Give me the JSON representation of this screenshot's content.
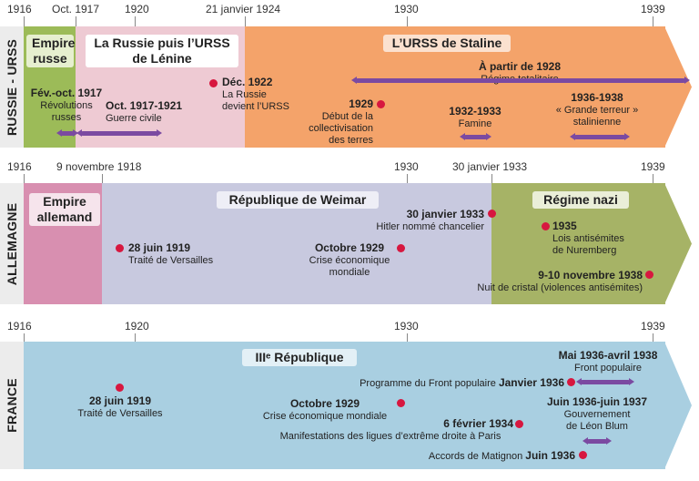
{
  "colors": {
    "sidebar": "#ececec",
    "event_dot": "#d7173f",
    "duration_bar": "#7b4aa1",
    "empire_russe": "#9cbb58",
    "russie_lenine": "#eecad3",
    "urss_staline": "#f4a36a",
    "empire_allemand": "#d88fb0",
    "weimar": "#c8c9df",
    "regime_nazi": "#a6b366",
    "france": "#a9cfe1"
  },
  "rows": [
    {
      "label": "RUSSIE - URSS",
      "ticks": [
        "1916",
        "Oct. 1917",
        "1920",
        "21 janvier 1924",
        "1930",
        "1939"
      ],
      "periods": [
        {
          "title": "Empire russe"
        },
        {
          "title": "La Russie puis l’URSS de Lénine"
        },
        {
          "title": "L’URSS de Staline"
        }
      ],
      "events": [
        {
          "title": "Fév.-oct. 1917",
          "desc": "Révolutions russes"
        },
        {
          "title": "Oct. 1917-1921",
          "desc": "Guerre civile"
        },
        {
          "title": "Déc. 1922",
          "desc": "La Russie devient l’URSS"
        },
        {
          "title": "1929",
          "desc": "Début de la collectivisation des terres"
        },
        {
          "title": "À partir de 1928",
          "desc": "Régime totalitaire"
        },
        {
          "title": "1932-1933",
          "desc": "Famine"
        },
        {
          "title": "1936-1938",
          "desc": "« Grande terreur » stalinienne"
        }
      ]
    },
    {
      "label": "ALLEMAGNE",
      "ticks": [
        "1916",
        "9 novembre 1918",
        "1930",
        "30 janvier 1933",
        "1939"
      ],
      "periods": [
        {
          "title": "Empire allemand"
        },
        {
          "title": "République de Weimar"
        },
        {
          "title": "Régime nazi"
        }
      ],
      "events": [
        {
          "title": "28 juin 1919",
          "desc": "Traité de Versailles"
        },
        {
          "title": "Octobre 1929",
          "desc": "Crise économique mondiale"
        },
        {
          "title": "30 janvier 1933",
          "desc": "Hitler nommé chancelier"
        },
        {
          "title": "1935",
          "desc": "Lois antisémites de Nuremberg"
        },
        {
          "title": "9-10 novembre 1938",
          "desc": "Nuit de cristal (violences antisémites)"
        }
      ]
    },
    {
      "label": "FRANCE",
      "ticks": [
        "1916",
        "1920",
        "1930",
        "1939"
      ],
      "periods": [
        {
          "title": "IIIᵉ République"
        }
      ],
      "events": [
        {
          "title": "28 juin 1919",
          "desc": "Traité de Versailles"
        },
        {
          "title": "Mai 1936-avril 1938",
          "desc": "Front populaire"
        },
        {
          "title": "Janvier 1936",
          "desc": "Programme du Front populaire"
        },
        {
          "title": "Octobre 1929",
          "desc": "Crise économique mondiale"
        },
        {
          "title": "Juin 1936-juin 1937",
          "desc": "Gouvernement de Léon Blum"
        },
        {
          "title": "6 février 1934",
          "desc": "Manifestations des ligues d’extrême droite à Paris"
        },
        {
          "title": "Juin 1936",
          "desc": "Accords de Matignon"
        }
      ]
    }
  ]
}
